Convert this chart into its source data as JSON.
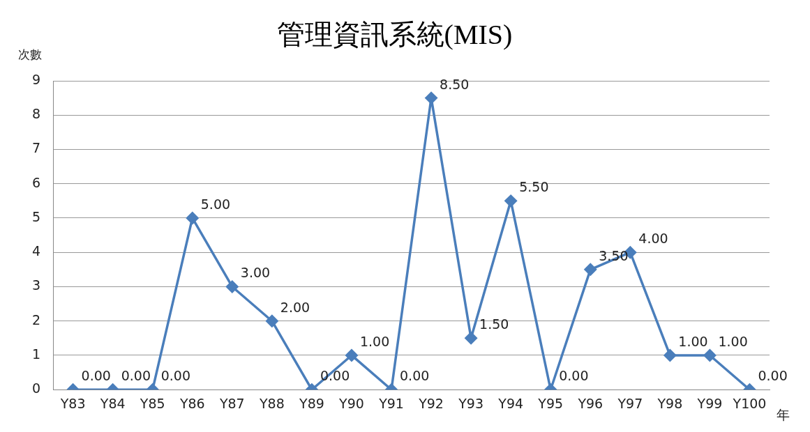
{
  "chart_data": {
    "type": "line",
    "title": "管理資訊系統(MIS)",
    "ylabel": "次數",
    "xlabel": "年",
    "categories": [
      "Y83",
      "Y84",
      "Y85",
      "Y86",
      "Y87",
      "Y88",
      "Y89",
      "Y90",
      "Y91",
      "Y92",
      "Y93",
      "Y94",
      "Y95",
      "Y96",
      "Y97",
      "Y98",
      "Y99",
      "Y100"
    ],
    "series": [
      {
        "color": "#4a7ebb",
        "values": [
          0,
          0,
          0,
          5,
          3,
          2,
          0,
          1,
          0,
          8.5,
          1.5,
          5.5,
          0,
          3.5,
          4,
          1,
          1,
          0
        ],
        "value_labels": [
          "0.00",
          "0.00",
          "0.00",
          "5.00",
          "3.00",
          "2.00",
          "0.00",
          "1.00",
          "0.00",
          "8.50",
          "1.50",
          "5.50",
          "0.00",
          "3.50",
          "4.00",
          "1.00",
          "1.00",
          "0.00"
        ]
      }
    ],
    "ylim": [
      0,
      9
    ],
    "yticks": [
      0,
      1,
      2,
      3,
      4,
      5,
      6,
      7,
      8,
      9
    ],
    "grid": "y",
    "legend": false,
    "marker": "diamond",
    "line_style": "solid"
  }
}
